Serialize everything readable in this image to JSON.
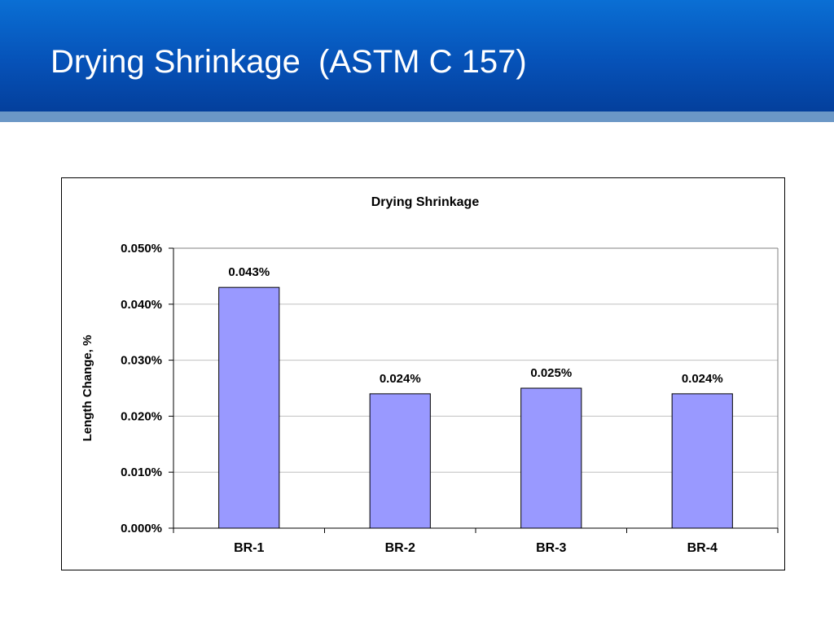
{
  "slide": {
    "title": "Drying Shrinkage  (ASTM C 157)"
  },
  "colors": {
    "header": "#0652b8",
    "header_band": "#6b97c6",
    "bar_fill": "#9999ff",
    "bar_stroke": "#000000",
    "gridline": "#c0c0c0"
  },
  "chart_data": {
    "type": "bar",
    "title": "Drying Shrinkage",
    "xlabel": "",
    "ylabel": "Length Change, %",
    "categories": [
      "BR-1",
      "BR-2",
      "BR-3",
      "BR-4"
    ],
    "values": [
      0.043,
      0.024,
      0.025,
      0.024
    ],
    "data_labels": [
      "0.043%",
      "0.024%",
      "0.025%",
      "0.024%"
    ],
    "ylim": [
      0,
      0.05
    ],
    "yticks": [
      0,
      0.01,
      0.02,
      0.03,
      0.04,
      0.05
    ],
    "ytick_labels": [
      "0.000%",
      "0.010%",
      "0.020%",
      "0.030%",
      "0.040%",
      "0.050%"
    ],
    "grid": true,
    "legend": "none"
  }
}
